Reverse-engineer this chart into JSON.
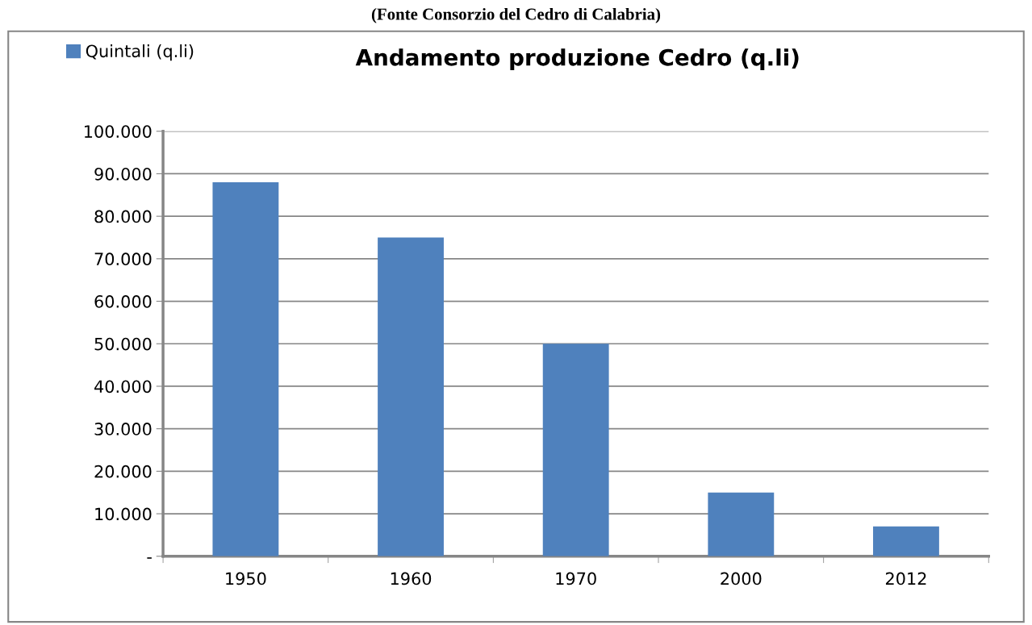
{
  "chart_data": {
    "type": "bar",
    "title": "Andamento produzione Cedro (q.li)",
    "annotations": [
      "(Fonte Consorzio del Cedro di Calabria)"
    ],
    "categories": [
      "1950",
      "1960",
      "1970",
      "2000",
      "2012"
    ],
    "series": [
      {
        "name": "Quintali (q.li)",
        "color": "#4f81bd",
        "values": [
          88000,
          75000,
          50000,
          15000,
          7000
        ]
      }
    ],
    "ylim": [
      0,
      100000
    ],
    "yticks": [
      {
        "value": 0,
        "label": "-"
      },
      {
        "value": 10000,
        "label": "10.000"
      },
      {
        "value": 20000,
        "label": "20.000"
      },
      {
        "value": 30000,
        "label": "30.000"
      },
      {
        "value": 40000,
        "label": "40.000"
      },
      {
        "value": 50000,
        "label": "50.000"
      },
      {
        "value": 60000,
        "label": "60.000"
      },
      {
        "value": 70000,
        "label": "70.000"
      },
      {
        "value": 80000,
        "label": "80.000"
      },
      {
        "value": 90000,
        "label": "90.000"
      },
      {
        "value": 100000,
        "label": "100.000"
      }
    ],
    "grid": "y",
    "legend": "top left"
  }
}
